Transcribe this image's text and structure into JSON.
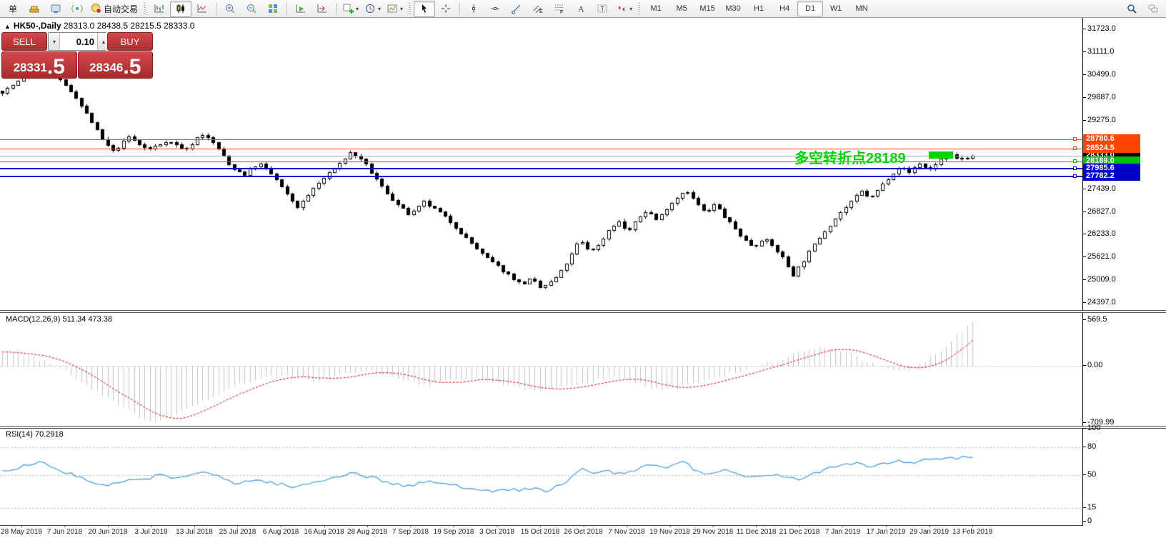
{
  "toolbar": {
    "items": [
      {
        "type": "btn",
        "name": "new-order-button",
        "label": "单"
      },
      {
        "type": "btn",
        "name": "market-watch-button",
        "icon": "gold"
      },
      {
        "type": "btn",
        "name": "community-button",
        "icon": "community"
      },
      {
        "type": "btn",
        "name": "signals-button",
        "icon": "signal"
      },
      {
        "type": "btn",
        "name": "auto-trading-button",
        "icon": "autotrade",
        "label": "自动交易"
      },
      {
        "type": "grip"
      },
      {
        "type": "btn",
        "name": "bar-chart-button",
        "icon": "bars"
      },
      {
        "type": "btn",
        "name": "candlestick-chart-button",
        "icon": "candles",
        "active": true
      },
      {
        "type": "btn",
        "name": "line-chart-button",
        "icon": "line"
      },
      {
        "type": "sep"
      },
      {
        "type": "btn",
        "name": "zoom-in-button",
        "icon": "zoomin"
      },
      {
        "type": "btn",
        "name": "zoom-out-button",
        "icon": "zoomout"
      },
      {
        "type": "btn",
        "name": "tile-windows-button",
        "icon": "tile"
      },
      {
        "type": "sep"
      },
      {
        "type": "btn",
        "name": "auto-scroll-button",
        "icon": "autoscroll"
      },
      {
        "type": "btn",
        "name": "chart-shift-button",
        "icon": "shift"
      },
      {
        "type": "sep"
      },
      {
        "type": "btn",
        "name": "indicators-button",
        "icon": "indicator",
        "dropdown": true
      },
      {
        "type": "btn",
        "name": "periods-button",
        "icon": "clock",
        "dropdown": true
      },
      {
        "type": "btn",
        "name": "templates-button",
        "icon": "template",
        "dropdown": true
      },
      {
        "type": "grip"
      },
      {
        "type": "btn",
        "name": "cursor-button",
        "icon": "cursor",
        "active": true
      },
      {
        "type": "btn",
        "name": "crosshair-button",
        "icon": "crosshair"
      },
      {
        "type": "sep"
      },
      {
        "type": "btn",
        "name": "vertical-line-button",
        "icon": "vline"
      },
      {
        "type": "btn",
        "name": "horizontal-line-button",
        "icon": "hline"
      },
      {
        "type": "btn",
        "name": "trendline-button",
        "icon": "trend"
      },
      {
        "type": "btn",
        "name": "equidistant-channel-button",
        "icon": "channel"
      },
      {
        "type": "btn",
        "name": "fibonacci-button",
        "icon": "fibo"
      },
      {
        "type": "btn",
        "name": "text-button",
        "icon": "textA"
      },
      {
        "type": "btn",
        "name": "text-label-button",
        "icon": "labelT"
      },
      {
        "type": "btn",
        "name": "arrows-button",
        "icon": "arrows",
        "dropdown": true
      },
      {
        "type": "grip"
      }
    ],
    "timeframes": [
      "M1",
      "M5",
      "M15",
      "M30",
      "H1",
      "H4",
      "D1",
      "W1",
      "MN"
    ],
    "active_timeframe": "D1",
    "right_items": [
      {
        "type": "btn",
        "name": "search-button",
        "icon": "search"
      },
      {
        "type": "btn",
        "name": "chat-button",
        "icon": "chat"
      }
    ]
  },
  "chart": {
    "collapse_icon": "▲",
    "symbol_title": "HK50-,Daily",
    "ohlc_text": "28313.0 28438.5 28215.5 28333.0"
  },
  "order_panel": {
    "sell_label": "SELL",
    "buy_label": "BUY",
    "volume": "0.10",
    "vol_down_icon": "▾",
    "vol_up_icon": "▴",
    "sell_price_main": "28331",
    "sell_price_frac": ".5",
    "buy_price_main": "28346",
    "buy_price_frac": ".5"
  },
  "annotation": {
    "text": "多空转折点28189",
    "color": "#00d400"
  },
  "indicators": {
    "macd_label": "MACD(12,26,9) 511.34 473.38",
    "rsi_label": "RSI(14) 70.2918"
  },
  "chart_data": {
    "type": "candlestick",
    "symbol": "HK50-",
    "timeframe": "Daily",
    "ohlc_current": {
      "open": 28313.0,
      "high": 28438.5,
      "low": 28215.5,
      "close": 28333.0
    },
    "bid": 28331.5,
    "ask": 28346.5,
    "y_axis_ticks": [
      31723,
      31111,
      30499,
      29887,
      29275,
      27439,
      26827,
      26233,
      25621,
      25009,
      24397
    ],
    "x_axis_dates": [
      "28 May 2018",
      "7 Jun 2018",
      "20 Jun 2018",
      "3 Jul 2018",
      "13 Jul 2018",
      "25 Jul 2018",
      "6 Aug 2018",
      "16 Aug 2018",
      "28 Aug 2018",
      "7 Sep 2018",
      "19 Sep 2018",
      "3 Oct 2018",
      "15 Oct 2018",
      "26 Oct 2018",
      "7 Nov 2018",
      "19 Nov 2018",
      "29 Nov 2018",
      "11 Dec 2018",
      "21 Dec 2018",
      "7 Jan 2019",
      "17 Jan 2019",
      "29 Jan 2019",
      "13 Feb 2019"
    ],
    "levels": [
      {
        "label": "28333.0",
        "value": 28333.0,
        "tag_color": "#000000",
        "line_color": "#aaaaaa",
        "line_width": 1
      },
      {
        "label": "28780.6",
        "value": 28780.6,
        "tag_color": "#ff4500",
        "line_color": "#ff4500",
        "line_width": 1
      },
      {
        "label": "28524.5",
        "value": 28524.5,
        "tag_color": "#ff4500",
        "line_color": "#ff4500",
        "line_width": 1
      },
      {
        "label": "28189.0",
        "value": 28189.0,
        "tag_color": "#00bf00",
        "line_color": "#00bf00",
        "line_width": 1
      },
      {
        "label": "27985.6",
        "value": 27985.6,
        "tag_color": "#0000c8",
        "line_color": "#0000c8",
        "line_width": 2
      },
      {
        "label": "27782.2",
        "value": 27782.2,
        "tag_color": "#0000c8",
        "line_color": "#0000c8",
        "line_width": 2
      }
    ],
    "annotation": {
      "text": "多空转折点28189",
      "price": 28189
    },
    "approx_close_path": [
      [
        0,
        30050
      ],
      [
        0.02,
        30400
      ],
      [
        0.045,
        30600
      ],
      [
        0.06,
        30350
      ],
      [
        0.075,
        29950
      ],
      [
        0.09,
        29350
      ],
      [
        0.105,
        28700
      ],
      [
        0.115,
        28450
      ],
      [
        0.13,
        28850
      ],
      [
        0.15,
        28500
      ],
      [
        0.17,
        28750
      ],
      [
        0.19,
        28500
      ],
      [
        0.205,
        28950
      ],
      [
        0.22,
        28650
      ],
      [
        0.235,
        28050
      ],
      [
        0.25,
        27850
      ],
      [
        0.265,
        28150
      ],
      [
        0.28,
        27800
      ],
      [
        0.295,
        27250
      ],
      [
        0.305,
        26950
      ],
      [
        0.32,
        27450
      ],
      [
        0.34,
        27950
      ],
      [
        0.36,
        28450
      ],
      [
        0.375,
        28100
      ],
      [
        0.39,
        27550
      ],
      [
        0.405,
        27100
      ],
      [
        0.42,
        26750
      ],
      [
        0.435,
        27100
      ],
      [
        0.45,
        26850
      ],
      [
        0.465,
        26500
      ],
      [
        0.48,
        26100
      ],
      [
        0.495,
        25700
      ],
      [
        0.51,
        25400
      ],
      [
        0.525,
        25100
      ],
      [
        0.535,
        24900
      ],
      [
        0.545,
        25050
      ],
      [
        0.555,
        24800
      ],
      [
        0.565,
        24950
      ],
      [
        0.575,
        25200
      ],
      [
        0.585,
        25600
      ],
      [
        0.595,
        26100
      ],
      [
        0.605,
        25800
      ],
      [
        0.615,
        25950
      ],
      [
        0.625,
        26350
      ],
      [
        0.635,
        26600
      ],
      [
        0.645,
        26300
      ],
      [
        0.655,
        26650
      ],
      [
        0.665,
        26900
      ],
      [
        0.675,
        26600
      ],
      [
        0.685,
        26950
      ],
      [
        0.695,
        27200
      ],
      [
        0.705,
        27450
      ],
      [
        0.715,
        27100
      ],
      [
        0.725,
        26800
      ],
      [
        0.735,
        27050
      ],
      [
        0.745,
        26700
      ],
      [
        0.755,
        26400
      ],
      [
        0.765,
        26100
      ],
      [
        0.775,
        25900
      ],
      [
        0.785,
        26150
      ],
      [
        0.795,
        25900
      ],
      [
        0.805,
        25600
      ],
      [
        0.815,
        25150
      ],
      [
        0.825,
        25500
      ],
      [
        0.835,
        25900
      ],
      [
        0.845,
        26250
      ],
      [
        0.855,
        26550
      ],
      [
        0.865,
        26850
      ],
      [
        0.875,
        27100
      ],
      [
        0.885,
        27400
      ],
      [
        0.895,
        27200
      ],
      [
        0.905,
        27500
      ],
      [
        0.915,
        27800
      ],
      [
        0.925,
        28050
      ],
      [
        0.935,
        27900
      ],
      [
        0.945,
        28150
      ],
      [
        0.955,
        27950
      ],
      [
        0.965,
        28200
      ],
      [
        0.975,
        28400
      ],
      [
        0.985,
        28250
      ],
      [
        1,
        28333
      ]
    ],
    "macd": {
      "params": "12,26,9",
      "main_current": 511.34,
      "signal_current": 473.38,
      "axis": [
        [
          "569.5",
          569.5
        ],
        [
          "0.00",
          0
        ],
        [
          "-709.99",
          -709.99
        ]
      ],
      "approx_main_path": [
        [
          0,
          180
        ],
        [
          0.03,
          120
        ],
        [
          0.06,
          -20
        ],
        [
          0.09,
          -260
        ],
        [
          0.12,
          -480
        ],
        [
          0.14,
          -620
        ],
        [
          0.155,
          -700
        ],
        [
          0.17,
          -640
        ],
        [
          0.2,
          -480
        ],
        [
          0.23,
          -300
        ],
        [
          0.26,
          -160
        ],
        [
          0.29,
          -120
        ],
        [
          0.32,
          -180
        ],
        [
          0.35,
          -100
        ],
        [
          0.38,
          -60
        ],
        [
          0.41,
          -160
        ],
        [
          0.44,
          -240
        ],
        [
          0.46,
          -180
        ],
        [
          0.49,
          -140
        ],
        [
          0.52,
          -240
        ],
        [
          0.55,
          -320
        ],
        [
          0.57,
          -280
        ],
        [
          0.6,
          -200
        ],
        [
          0.63,
          -120
        ],
        [
          0.65,
          -200
        ],
        [
          0.68,
          -300
        ],
        [
          0.7,
          -260
        ],
        [
          0.73,
          -150
        ],
        [
          0.76,
          -60
        ],
        [
          0.79,
          40
        ],
        [
          0.81,
          120
        ],
        [
          0.83,
          200
        ],
        [
          0.85,
          240
        ],
        [
          0.87,
          180
        ],
        [
          0.89,
          60
        ],
        [
          0.91,
          -40
        ],
        [
          0.93,
          -60
        ],
        [
          0.95,
          60
        ],
        [
          0.97,
          220
        ],
        [
          0.985,
          400
        ],
        [
          1,
          560
        ]
      ]
    },
    "rsi": {
      "period": 14,
      "current": 70.2918,
      "axis": [
        [
          "100",
          100
        ],
        [
          "80",
          80
        ],
        [
          "50",
          50
        ],
        [
          "15",
          15
        ],
        [
          "0",
          0
        ]
      ],
      "level_lines": [
        80,
        50,
        15
      ],
      "approx_path": [
        [
          0,
          55
        ],
        [
          0.02,
          60
        ],
        [
          0.04,
          65
        ],
        [
          0.06,
          55
        ],
        [
          0.08,
          48
        ],
        [
          0.1,
          38
        ],
        [
          0.12,
          42
        ],
        [
          0.14,
          45
        ],
        [
          0.16,
          50
        ],
        [
          0.18,
          47
        ],
        [
          0.2,
          53
        ],
        [
          0.22,
          50
        ],
        [
          0.24,
          42
        ],
        [
          0.26,
          45
        ],
        [
          0.28,
          42
        ],
        [
          0.3,
          37
        ],
        [
          0.32,
          42
        ],
        [
          0.34,
          48
        ],
        [
          0.36,
          53
        ],
        [
          0.38,
          48
        ],
        [
          0.4,
          42
        ],
        [
          0.42,
          38
        ],
        [
          0.44,
          44
        ],
        [
          0.46,
          40
        ],
        [
          0.48,
          37
        ],
        [
          0.5,
          35
        ],
        [
          0.52,
          33
        ],
        [
          0.54,
          36
        ],
        [
          0.56,
          34
        ],
        [
          0.58,
          40
        ],
        [
          0.595,
          57
        ],
        [
          0.61,
          52
        ],
        [
          0.625,
          55
        ],
        [
          0.64,
          50
        ],
        [
          0.655,
          57
        ],
        [
          0.67,
          62
        ],
        [
          0.685,
          58
        ],
        [
          0.7,
          66
        ],
        [
          0.715,
          55
        ],
        [
          0.73,
          52
        ],
        [
          0.745,
          55
        ],
        [
          0.76,
          50
        ],
        [
          0.775,
          47
        ],
        [
          0.79,
          52
        ],
        [
          0.805,
          48
        ],
        [
          0.82,
          45
        ],
        [
          0.835,
          52
        ],
        [
          0.85,
          58
        ],
        [
          0.865,
          62
        ],
        [
          0.88,
          64
        ],
        [
          0.895,
          60
        ],
        [
          0.91,
          63
        ],
        [
          0.925,
          66
        ],
        [
          0.94,
          64
        ],
        [
          0.955,
          67
        ],
        [
          0.97,
          69
        ],
        [
          0.985,
          68
        ],
        [
          1,
          70.3
        ]
      ]
    }
  }
}
